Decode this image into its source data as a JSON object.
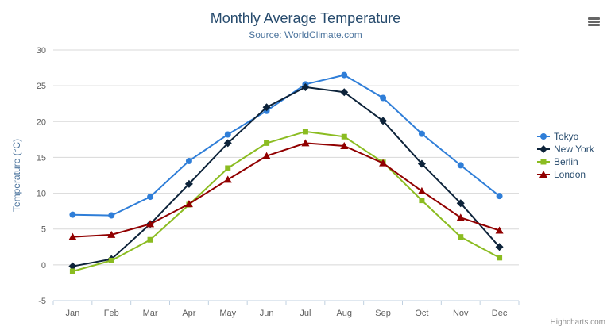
{
  "chart": {
    "credit": "Highcharts.com",
    "menu_icon": "hamburger-menu-icon"
  },
  "chart_data": {
    "type": "line",
    "title": "Monthly Average Temperature",
    "subtitle": "Source: WorldClimate.com",
    "xlabel": "",
    "ylabel": "Temperature (°C)",
    "ylim": [
      -5,
      30
    ],
    "ytick_interval": 5,
    "grid": true,
    "legend_position": "right",
    "categories": [
      "Jan",
      "Feb",
      "Mar",
      "Apr",
      "May",
      "Jun",
      "Jul",
      "Aug",
      "Sep",
      "Oct",
      "Nov",
      "Dec"
    ],
    "series": [
      {
        "name": "Tokyo",
        "color": "#2f7ed8",
        "marker": "circle",
        "values": [
          7.0,
          6.9,
          9.5,
          14.5,
          18.2,
          21.5,
          25.2,
          26.5,
          23.3,
          18.3,
          13.9,
          9.6
        ]
      },
      {
        "name": "New York",
        "color": "#0d233a",
        "marker": "diamond",
        "values": [
          -0.2,
          0.8,
          5.7,
          11.3,
          17.0,
          22.0,
          24.8,
          24.1,
          20.1,
          14.1,
          8.6,
          2.5
        ]
      },
      {
        "name": "Berlin",
        "color": "#8bbc21",
        "marker": "square",
        "values": [
          -0.9,
          0.6,
          3.5,
          8.4,
          13.5,
          17.0,
          18.6,
          17.9,
          14.3,
          9.0,
          3.9,
          1.0
        ]
      },
      {
        "name": "London",
        "color": "#910000",
        "marker": "triangle",
        "values": [
          3.9,
          4.2,
          5.7,
          8.5,
          11.9,
          15.2,
          17.0,
          16.6,
          14.2,
          10.3,
          6.6,
          4.8
        ]
      }
    ]
  }
}
